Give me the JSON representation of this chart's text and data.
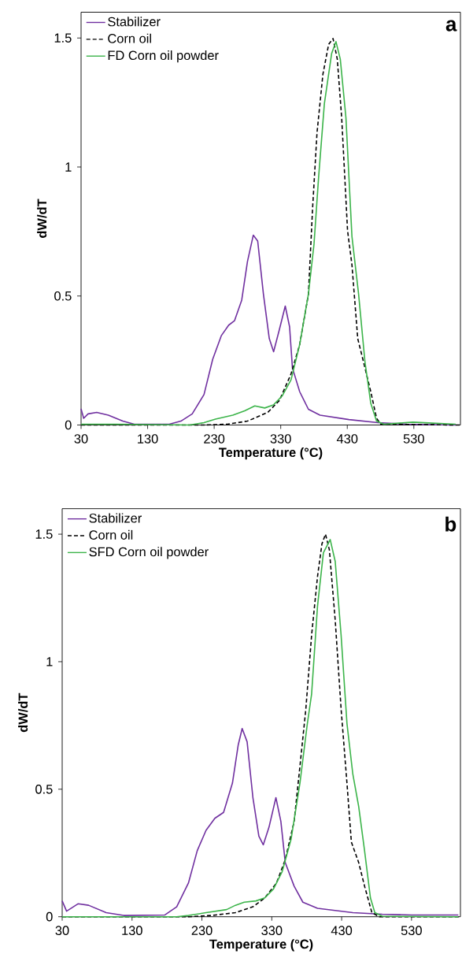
{
  "chart_data": [
    {
      "type": "line",
      "xlabel": "Temperature (°C)",
      "ylabel": "dW/dT",
      "annotations": [
        "a"
      ],
      "legend": "top left",
      "grid": false,
      "xlim": [
        30,
        600
      ],
      "xticks": [
        30,
        130,
        230,
        330,
        430,
        530
      ],
      "ylim": [
        0,
        1.6
      ],
      "yticks": [
        0,
        0.5,
        1,
        1.5
      ],
      "series": [
        {
          "name": "Stabilizer",
          "color": "#7030a0",
          "line_style": "solid",
          "x": [
            30,
            33.9,
            40.5,
            53.5,
            71,
            92.7,
            110,
            162.5,
            180,
            197,
            214.7,
            227.8,
            240.9,
            251.8,
            260.5,
            271.4,
            280,
            288.8,
            295.4,
            304,
            312.8,
            319.3,
            328,
            336.8,
            343.3,
            347.6,
            358.5,
            371.6,
            389,
            432.6,
            476.2,
            519.8,
            593
          ],
          "values": [
            0.063,
            0.026,
            0.043,
            0.049,
            0.038,
            0.015,
            0.003,
            0.003,
            0.015,
            0.043,
            0.118,
            0.255,
            0.347,
            0.387,
            0.404,
            0.484,
            0.633,
            0.736,
            0.713,
            0.507,
            0.335,
            0.284,
            0.37,
            0.461,
            0.381,
            0.221,
            0.129,
            0.061,
            0.038,
            0.021,
            0.009,
            0.003,
            0
          ]
        },
        {
          "name": "Corn oil",
          "color": "#000000",
          "line_style": "dashed",
          "x": [
            30,
            214.7,
            249.6,
            280,
            310.6,
            328,
            345.5,
            358.5,
            371.6,
            378,
            384.5,
            393.4,
            402,
            408.6,
            415,
            421.6,
            430.4,
            437,
            445.7,
            456.6,
            465.3,
            474,
            480.5,
            600
          ],
          "values": [
            0,
            0,
            0.003,
            0.015,
            0.049,
            0.095,
            0.198,
            0.312,
            0.507,
            0.846,
            1.132,
            1.36,
            1.475,
            1.498,
            1.418,
            1.19,
            0.754,
            0.621,
            0.335,
            0.221,
            0.129,
            0.026,
            0.003,
            0
          ]
        },
        {
          "name": "FD Corn oil powder",
          "color": "#3cb44a",
          "line_style": "solid",
          "x": [
            30,
            84,
            193,
            214.7,
            232,
            258,
            275.8,
            291,
            306,
            319,
            332,
            345.5,
            358.5,
            371.6,
            380,
            386.9,
            395.6,
            406.5,
            413,
            419.5,
            428,
            437,
            447,
            456.6,
            465.3,
            474,
            485,
            528.5,
            593
          ],
          "values": [
            0.003,
            0.003,
            0,
            0.009,
            0.023,
            0.038,
            0.055,
            0.074,
            0.066,
            0.078,
            0.112,
            0.175,
            0.312,
            0.507,
            0.701,
            0.96,
            1.246,
            1.44,
            1.486,
            1.418,
            1.19,
            0.731,
            0.507,
            0.244,
            0.084,
            0.015,
            0.003,
            0.011,
            0.003
          ]
        }
      ]
    },
    {
      "type": "line",
      "xlabel": "Temperature (°C)",
      "ylabel": "dW/dT",
      "annotations": [
        "b"
      ],
      "legend": "top left",
      "grid": false,
      "xlim": [
        30,
        600
      ],
      "xticks": [
        30,
        130,
        230,
        330,
        430,
        530
      ],
      "ylim": [
        0,
        1.6
      ],
      "yticks": [
        0,
        0.5,
        1,
        1.5
      ],
      "series": [
        {
          "name": "Stabilizer",
          "color": "#7030a0",
          "line_style": "solid",
          "x": [
            30,
            36.3,
            53,
            67.8,
            93,
            118,
            177,
            193.9,
            210.7,
            223.3,
            235.9,
            248.5,
            261,
            273.7,
            282,
            287.6,
            294.7,
            303,
            311.5,
            317.8,
            326,
            335.9,
            343,
            349.3,
            362,
            374.5,
            395.5,
            446,
            488,
            530,
            597
          ],
          "values": [
            0.062,
            0.022,
            0.051,
            0.045,
            0.016,
            0.005,
            0.007,
            0.039,
            0.132,
            0.259,
            0.339,
            0.386,
            0.409,
            0.524,
            0.674,
            0.738,
            0.686,
            0.467,
            0.316,
            0.282,
            0.351,
            0.467,
            0.374,
            0.212,
            0.12,
            0.057,
            0.033,
            0.016,
            0.01,
            0.007,
            0.007
          ]
        },
        {
          "name": "Corn oil",
          "color": "#000000",
          "line_style": "dashed",
          "x": [
            30,
            210.7,
            244,
            278,
            303,
            320,
            336.7,
            349.3,
            362,
            370,
            378.7,
            387,
            395.5,
            401.8,
            406.9,
            412.4,
            420.8,
            429.2,
            437.6,
            443.9,
            454.4,
            462.8,
            473.3,
            483.8,
            600
          ],
          "values": [
            0,
            0,
            0.005,
            0.016,
            0.039,
            0.074,
            0.132,
            0.224,
            0.374,
            0.582,
            0.813,
            1.104,
            1.335,
            1.462,
            1.5,
            1.439,
            1.162,
            0.815,
            0.524,
            0.293,
            0.212,
            0.12,
            0.016,
            0,
            0
          ]
        },
        {
          "name": "SFD Corn oil powder",
          "color": "#3cb44a",
          "line_style": "solid",
          "x": [
            30,
            193.9,
            210.7,
            235.9,
            265.3,
            278,
            290.5,
            307.3,
            320,
            332.5,
            345,
            357.7,
            370.3,
            380.8,
            387,
            395.5,
            403.9,
            413.6,
            420.8,
            429.2,
            437.6,
            446,
            454.4,
            462.8,
            471.2,
            477.5,
            488,
            597
          ],
          "values": [
            0,
            0,
            0.005,
            0.016,
            0.028,
            0.045,
            0.057,
            0.062,
            0.074,
            0.109,
            0.178,
            0.305,
            0.524,
            0.755,
            0.873,
            1.219,
            1.427,
            1.479,
            1.393,
            1.104,
            0.758,
            0.559,
            0.432,
            0.259,
            0.074,
            0.016,
            0.002,
            0
          ]
        }
      ]
    }
  ]
}
